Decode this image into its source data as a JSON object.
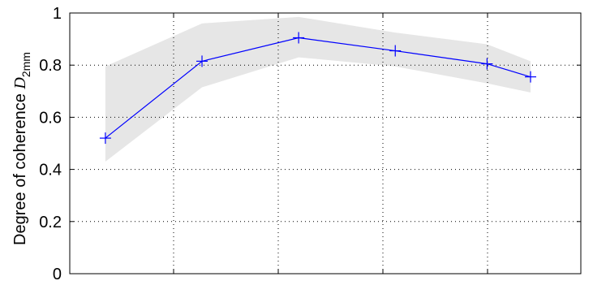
{
  "chart_data": {
    "type": "line",
    "title": "",
    "xlabel": "",
    "ylabel": {
      "text": "Degree of coherence ",
      "symbol": "D",
      "subscript": "2mm"
    },
    "ylim": [
      0,
      1
    ],
    "yticks": [
      "0",
      "0.2",
      "0.4",
      "0.6",
      "0.8",
      "1"
    ],
    "xlim": [
      0,
      4.5
    ],
    "grid": true,
    "series": [
      {
        "color": "#0000ff",
        "marker": "plus",
        "x": [
          0.1,
          1.1,
          2.1,
          3.1,
          4.05,
          4.5
        ],
        "values": [
          0.52,
          0.815,
          0.905,
          0.855,
          0.805,
          0.755
        ],
        "band_upper": [
          0.795,
          0.96,
          0.985,
          0.925,
          0.88,
          0.815
        ],
        "band_lower": [
          0.43,
          0.715,
          0.83,
          0.795,
          0.73,
          0.695
        ]
      }
    ],
    "band_color": "#e6e6e6"
  }
}
